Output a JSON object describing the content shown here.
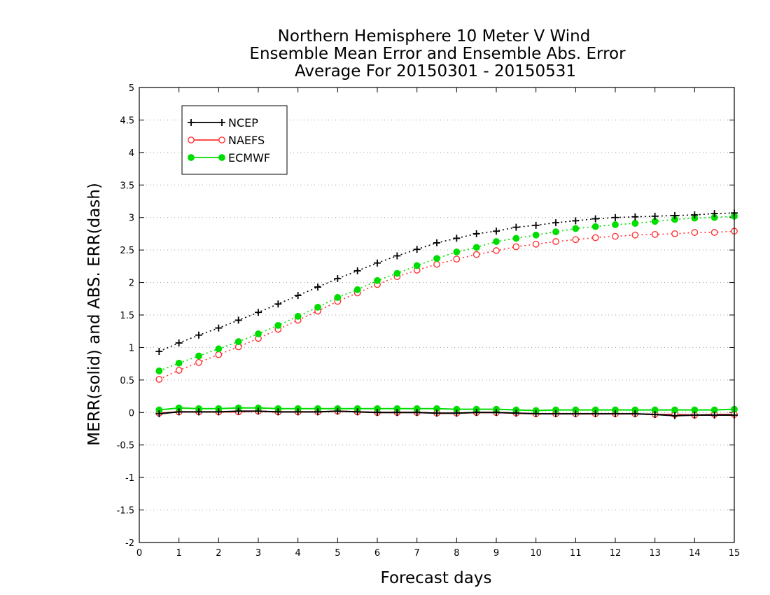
{
  "chart_data": {
    "type": "line",
    "title_lines": [
      "Northern Hemisphere 10 Meter V Wind",
      "Ensemble Mean Error and Ensemble Abs. Error",
      "Average For 20150301 - 20150531"
    ],
    "xlabel": "Forecast days",
    "ylabel": "MERR(solid) and ABS. ERR(dash)",
    "xlim": [
      0,
      15
    ],
    "ylim": [
      -2,
      5
    ],
    "x_ticks": [
      0,
      1,
      2,
      3,
      4,
      5,
      6,
      7,
      8,
      9,
      10,
      11,
      12,
      13,
      14,
      15
    ],
    "y_ticks": [
      -2,
      -1.5,
      -1,
      -0.5,
      0,
      0.5,
      1,
      1.5,
      2,
      2.5,
      3,
      3.5,
      4,
      4.5,
      5
    ],
    "grid": "horizontal dotted",
    "legend_position": "top-left",
    "x": [
      0.5,
      1,
      1.5,
      2,
      2.5,
      3,
      3.5,
      4,
      4.5,
      5,
      5.5,
      6,
      6.5,
      7,
      7.5,
      8,
      8.5,
      9,
      9.5,
      10,
      10.5,
      11,
      11.5,
      12,
      12.5,
      13,
      13.5,
      14,
      14.5,
      15
    ],
    "series": [
      {
        "name": "NCEP",
        "color": "#000000",
        "marker": "plus",
        "abs_error": [
          0.94,
          1.07,
          1.19,
          1.3,
          1.42,
          1.54,
          1.67,
          1.8,
          1.93,
          2.06,
          2.18,
          2.3,
          2.41,
          2.51,
          2.61,
          2.68,
          2.75,
          2.79,
          2.85,
          2.88,
          2.92,
          2.95,
          2.98,
          3.0,
          3.01,
          3.02,
          3.03,
          3.04,
          3.06,
          3.07
        ],
        "mean_error": [
          -0.02,
          0.01,
          0.01,
          0.01,
          0.02,
          0.02,
          0.01,
          0.01,
          0.01,
          0.02,
          0.01,
          0.0,
          0.0,
          0.0,
          -0.01,
          -0.01,
          0.0,
          0.0,
          -0.01,
          -0.02,
          -0.02,
          -0.02,
          -0.02,
          -0.02,
          -0.02,
          -0.03,
          -0.05,
          -0.04,
          -0.04,
          -0.04
        ]
      },
      {
        "name": "NAEFS",
        "color": "#ff3333",
        "marker": "open-circle",
        "abs_error": [
          0.51,
          0.65,
          0.77,
          0.89,
          1.01,
          1.14,
          1.28,
          1.42,
          1.56,
          1.71,
          1.84,
          1.97,
          2.09,
          2.19,
          2.28,
          2.36,
          2.43,
          2.49,
          2.55,
          2.59,
          2.63,
          2.66,
          2.69,
          2.71,
          2.73,
          2.74,
          2.75,
          2.77,
          2.77,
          2.79
        ],
        "mean_error": [
          -0.01,
          0.01,
          0.01,
          0.01,
          0.01,
          0.02,
          0.01,
          0.01,
          0.01,
          0.02,
          0.01,
          0.0,
          0.0,
          0.0,
          -0.01,
          -0.01,
          0.0,
          0.0,
          -0.01,
          -0.02,
          -0.02,
          -0.02,
          -0.02,
          -0.02,
          -0.02,
          -0.03,
          -0.03,
          -0.04,
          -0.03,
          -0.03
        ]
      },
      {
        "name": "ECMWF",
        "color": "#00dd00",
        "marker": "filled-circle",
        "abs_error": [
          0.64,
          0.76,
          0.87,
          0.98,
          1.09,
          1.21,
          1.34,
          1.48,
          1.62,
          1.77,
          1.89,
          2.03,
          2.14,
          2.26,
          2.37,
          2.47,
          2.54,
          2.63,
          2.68,
          2.73,
          2.78,
          2.83,
          2.86,
          2.89,
          2.91,
          2.94,
          2.97,
          2.99,
          3.0,
          3.02
        ],
        "mean_error": [
          0.04,
          0.07,
          0.06,
          0.06,
          0.07,
          0.07,
          0.06,
          0.06,
          0.06,
          0.06,
          0.06,
          0.06,
          0.06,
          0.06,
          0.06,
          0.05,
          0.05,
          0.05,
          0.04,
          0.03,
          0.04,
          0.04,
          0.04,
          0.04,
          0.04,
          0.04,
          0.04,
          0.04,
          0.04,
          0.05
        ]
      }
    ]
  }
}
